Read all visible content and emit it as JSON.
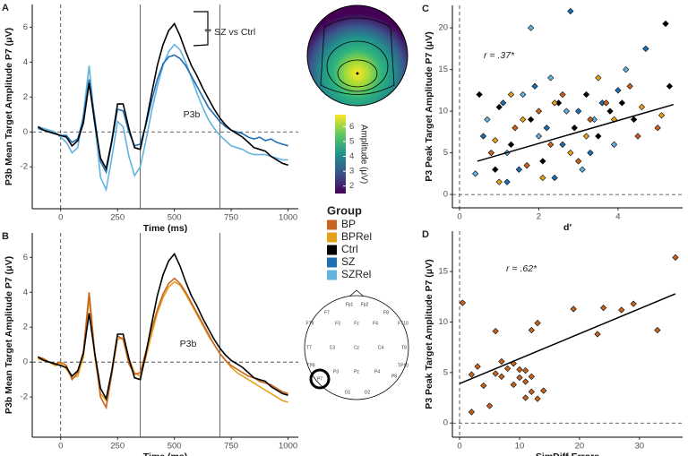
{
  "chart_data": [
    {
      "type": "line",
      "panel": "A",
      "xlabel": "Time (ms)",
      "ylabel": "P3b Mean Target Amplitude P7 (μV)",
      "annotations": [
        "** SZ vs Ctrl",
        "P3b"
      ],
      "xlim": [
        -125,
        1045
      ],
      "ylim": [
        -4.4,
        7.3
      ],
      "xticks": [
        0,
        250,
        500,
        750,
        1000
      ],
      "yticks": [
        -2,
        0,
        2,
        4,
        6
      ],
      "vlines": [
        350,
        700
      ],
      "ref_x": 0,
      "ref_y": 0,
      "x": [
        -100,
        -75,
        -50,
        -25,
        0,
        25,
        50,
        75,
        100,
        125,
        150,
        175,
        200,
        225,
        250,
        275,
        300,
        325,
        350,
        375,
        400,
        425,
        450,
        475,
        500,
        525,
        550,
        575,
        600,
        625,
        650,
        675,
        700,
        725,
        750,
        775,
        800,
        825,
        850,
        875,
        900,
        925,
        950,
        975,
        1000
      ],
      "series": [
        {
          "name": "SZRel",
          "color": "#63b3e0",
          "values": [
            0.3,
            0.2,
            0.1,
            0,
            -0.3,
            -0.6,
            -1.2,
            -0.9,
            1.0,
            3.8,
            0.5,
            -2.6,
            -3.3,
            -1.5,
            0.6,
            0.3,
            -1.4,
            -2.5,
            -2.0,
            -0.5,
            1.2,
            2.6,
            3.8,
            4.6,
            5.0,
            4.7,
            4.0,
            3.1,
            2.2,
            1.4,
            0.7,
            0.2,
            -0.2,
            -0.5,
            -0.8,
            -0.9,
            -1.0,
            -1.2,
            -1.3,
            -1.3,
            -1.3,
            -1.4,
            -1.5,
            -1.6,
            -1.6
          ]
        },
        {
          "name": "SZ",
          "color": "#1f6fb4",
          "values": [
            0.2,
            0.1,
            0,
            -0.1,
            -0.2,
            -0.2,
            -0.6,
            -0.4,
            0.8,
            3.0,
            0.8,
            -1.7,
            -2.3,
            -0.6,
            1.3,
            1.2,
            0.0,
            -0.8,
            -0.7,
            0.4,
            1.8,
            3.0,
            3.9,
            4.3,
            4.4,
            4.2,
            3.8,
            3.2,
            2.6,
            2.0,
            1.4,
            1.0,
            0.6,
            0.3,
            0.1,
            0,
            -0.1,
            -0.3,
            -0.4,
            -0.3,
            -0.5,
            -0.4,
            -0.6,
            -0.7,
            -0.8
          ]
        },
        {
          "name": "Ctrl",
          "color": "#000000",
          "values": [
            0.3,
            0.1,
            0,
            -0.1,
            -0.2,
            -0.3,
            -0.8,
            -0.5,
            0.5,
            2.8,
            0.5,
            -1.5,
            -2.1,
            -0.5,
            1.6,
            1.6,
            0.2,
            -0.9,
            -1.0,
            0.5,
            2.2,
            3.8,
            5.0,
            5.8,
            6.2,
            5.5,
            4.6,
            3.8,
            3.2,
            2.5,
            1.9,
            1.3,
            0.8,
            0.4,
            0.1,
            -0.1,
            -0.3,
            -0.6,
            -0.9,
            -1.0,
            -1.1,
            -1.4,
            -1.6,
            -1.8,
            -1.9
          ]
        }
      ]
    },
    {
      "type": "line",
      "panel": "B",
      "xlabel": "Time (ms)",
      "ylabel": "P3b Mean Target Amplitude P7 (μV)",
      "annotations": [
        "P3b"
      ],
      "xlim": [
        -125,
        1045
      ],
      "ylim": [
        -4.3,
        7.4
      ],
      "xticks": [
        0,
        250,
        500,
        750,
        1000
      ],
      "yticks": [
        -2,
        0,
        2,
        4,
        6
      ],
      "vlines": [
        350,
        700
      ],
      "ref_x": 0,
      "ref_y": 0,
      "x": [
        -100,
        -75,
        -50,
        -25,
        0,
        25,
        50,
        75,
        100,
        125,
        150,
        175,
        200,
        225,
        250,
        275,
        300,
        325,
        350,
        375,
        400,
        425,
        450,
        475,
        500,
        525,
        550,
        575,
        600,
        625,
        650,
        675,
        700,
        725,
        750,
        775,
        800,
        825,
        850,
        875,
        900,
        925,
        950,
        975,
        1000
      ],
      "series": [
        {
          "name": "BPRel",
          "color": "#e6a11b",
          "values": [
            0.2,
            0.1,
            0,
            -0.2,
            -0.1,
            -0.4,
            -0.9,
            -0.8,
            0.3,
            3.7,
            0.3,
            -1.8,
            -2.2,
            -0.6,
            1.3,
            1.4,
            0.2,
            -0.6,
            -0.8,
            0.3,
            1.6,
            2.8,
            3.7,
            4.3,
            4.6,
            4.4,
            3.9,
            3.3,
            2.7,
            2.1,
            1.5,
            1.0,
            0.5,
            0.1,
            -0.3,
            -0.6,
            -0.8,
            -1.0,
            -1.2,
            -1.4,
            -1.6,
            -1.8,
            -2.0,
            -2.2,
            -2.3
          ]
        },
        {
          "name": "BP",
          "color": "#c8641e",
          "values": [
            0.3,
            0.2,
            0,
            -0.1,
            0,
            -0.2,
            -1.0,
            -0.6,
            0.6,
            4.0,
            0.5,
            -2.0,
            -2.6,
            -0.7,
            1.5,
            1.3,
            -0.1,
            -0.7,
            -0.6,
            0.6,
            1.9,
            3.0,
            3.9,
            4.5,
            4.8,
            4.5,
            4.0,
            3.4,
            2.8,
            2.2,
            1.6,
            1.0,
            0.5,
            0.1,
            -0.2,
            -0.4,
            -0.6,
            -0.8,
            -0.9,
            -1.1,
            -1.2,
            -1.3,
            -1.5,
            -1.7,
            -1.8
          ]
        },
        {
          "name": "Ctrl",
          "color": "#000000",
          "values": [
            0.3,
            0.1,
            0,
            -0.1,
            -0.2,
            -0.3,
            -0.8,
            -0.5,
            0.5,
            2.8,
            0.5,
            -1.5,
            -2.1,
            -0.5,
            1.6,
            1.6,
            0.2,
            -0.9,
            -1.0,
            0.5,
            2.2,
            3.8,
            5.0,
            5.8,
            6.2,
            5.5,
            4.6,
            3.8,
            3.2,
            2.5,
            1.9,
            1.3,
            0.8,
            0.4,
            0.1,
            -0.1,
            -0.3,
            -0.6,
            -0.9,
            -1.0,
            -1.1,
            -1.4,
            -1.6,
            -1.8,
            -1.9
          ]
        }
      ]
    },
    {
      "type": "scatter",
      "panel": "C",
      "xlabel": "d′",
      "ylabel": "P3 Peak Target Amplitude P7 (μV)",
      "annotations": [
        "r = .37*"
      ],
      "xlim": [
        -0.18,
        5.63
      ],
      "ylim": [
        -1.6,
        22.7
      ],
      "xticks": [
        0,
        2,
        4
      ],
      "yticks": [
        0,
        5,
        10,
        15,
        20
      ],
      "ref_x": 0,
      "ref_y": 0,
      "series": [
        {
          "name": "Ctrl",
          "color": "#000000",
          "x": [
            0.5,
            1.0,
            1.3,
            1.8,
            2.1,
            2.5,
            2.9,
            3.2,
            3.5,
            3.8,
            4.1,
            4.4,
            5.2,
            5.3,
            0.9
          ],
          "values": [
            12,
            10.5,
            6,
            9,
            4,
            11,
            8,
            12,
            7,
            10,
            11,
            9,
            20.5,
            13,
            3
          ]
        },
        {
          "name": "SZ",
          "color": "#1f6fb4",
          "x": [
            0.6,
            1.1,
            1.5,
            1.9,
            2.2,
            2.6,
            3.0,
            3.3,
            3.6,
            4.0,
            4.7,
            1.2,
            2.8,
            2.4
          ],
          "values": [
            7,
            11,
            3,
            13,
            8,
            6,
            10,
            5,
            11,
            12.5,
            17.5,
            1.5,
            22,
            2
          ]
        },
        {
          "name": "SZRel",
          "color": "#63b3e0",
          "x": [
            0.7,
            1.2,
            1.6,
            2.0,
            2.3,
            2.7,
            3.1,
            3.4,
            3.9,
            4.2,
            0.4,
            1.8
          ],
          "values": [
            9,
            5,
            12,
            7,
            14,
            10,
            3,
            9,
            6,
            15,
            2.5,
            20
          ]
        },
        {
          "name": "BP",
          "color": "#c8641e",
          "x": [
            0.8,
            1.4,
            1.7,
            2.0,
            2.3,
            2.6,
            3.0,
            3.3,
            3.7,
            4.3,
            5.0,
            4.5
          ],
          "values": [
            5,
            8,
            3.5,
            10,
            6,
            12,
            4,
            9,
            11,
            13,
            8,
            7
          ]
        },
        {
          "name": "BPRel",
          "color": "#e6a11b",
          "x": [
            0.9,
            1.3,
            1.6,
            2.1,
            2.4,
            2.8,
            3.2,
            3.5,
            3.9,
            4.6,
            5.1,
            1.0
          ],
          "values": [
            6.5,
            12,
            9,
            2,
            11,
            5,
            7,
            14,
            9,
            10.5,
            9.5,
            1.5
          ]
        }
      ],
      "fit": {
        "x": [
          0.45,
          5.4
        ],
        "y": [
          4.0,
          10.8
        ]
      }
    },
    {
      "type": "scatter",
      "panel": "D",
      "xlabel": "SimDiff Errors",
      "ylabel": "P3 Peak Target Amplitude P7 (μV)",
      "annotations": [
        "r = .62*"
      ],
      "xlim": [
        -1.2,
        37.2
      ],
      "ylim": [
        -1.4,
        19
      ],
      "xticks": [
        0,
        10,
        20,
        30
      ],
      "yticks": [
        0,
        5,
        10,
        15
      ],
      "ref_x": 0,
      "ref_y": 0,
      "series": [
        {
          "name": "BP",
          "color": "#c8641e",
          "x": [
            0.5,
            2,
            2,
            3,
            4,
            5,
            6,
            6,
            7,
            7,
            8,
            9,
            9,
            10,
            10,
            11,
            11,
            11,
            12,
            12,
            12,
            13,
            13,
            14,
            19,
            23,
            24,
            27,
            29,
            33,
            36
          ],
          "values": [
            11.9,
            4.8,
            1.1,
            5.6,
            3.7,
            1.7,
            9.1,
            4.9,
            4.6,
            6.1,
            5.4,
            5.9,
            3.8,
            5.3,
            4.5,
            5.2,
            2.5,
            4.1,
            9.2,
            3.1,
            4.6,
            9.9,
            2.4,
            3.2,
            11.3,
            8.8,
            11.4,
            11.2,
            11.8,
            9.2,
            16.4
          ]
        }
      ],
      "fit": {
        "x": [
          0,
          36
        ],
        "y": [
          3.9,
          12.8
        ]
      }
    }
  ],
  "legend": {
    "title": "Group",
    "items": [
      {
        "name": "BP",
        "color": "#c8641e"
      },
      {
        "name": "BPRel",
        "color": "#e6a11b"
      },
      {
        "name": "Ctrl",
        "color": "#000000"
      },
      {
        "name": "SZ",
        "color": "#1f6fb4"
      },
      {
        "name": "SZRel",
        "color": "#63b3e0"
      }
    ]
  },
  "colorbar": {
    "title": "Amplitude (μV)",
    "lim": [
      1.5,
      6.8
    ],
    "ticks": [
      2,
      3,
      4,
      5,
      6
    ]
  },
  "electrodes": [
    "Fp1",
    "Fp2",
    "F7",
    "F3",
    "Fz",
    "F4",
    "F8",
    "FT9",
    "FT10",
    "T7",
    "C3",
    "Cz",
    "C4",
    "T8",
    "TP9",
    "P7",
    "P3",
    "Pz",
    "P4",
    "P8",
    "TP10",
    "O1",
    "O2"
  ]
}
